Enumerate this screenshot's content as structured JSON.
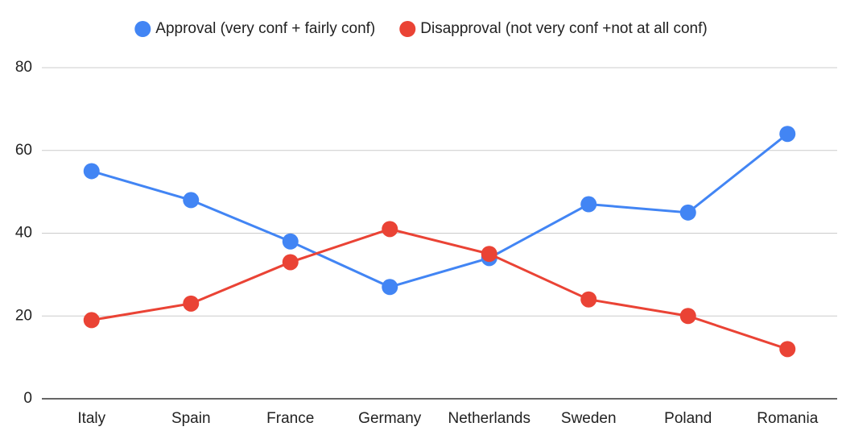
{
  "chart_data": {
    "type": "line",
    "categories": [
      "Italy",
      "Spain",
      "France",
      "Germany",
      "Netherlands",
      "Sweden",
      "Poland",
      "Romania"
    ],
    "series": [
      {
        "name": "Approval (very conf + fairly conf)",
        "color": "#4285f4",
        "values": [
          55,
          48,
          38,
          27,
          34,
          47,
          45,
          64
        ]
      },
      {
        "name": "Disapproval (not very conf +not at all conf)",
        "color": "#ea4335",
        "values": [
          19,
          23,
          33,
          41,
          35,
          24,
          20,
          12
        ]
      }
    ],
    "ylim": [
      0,
      80
    ],
    "yticks": [
      0,
      20,
      40,
      60,
      80
    ],
    "grid": true,
    "legend": "top"
  }
}
